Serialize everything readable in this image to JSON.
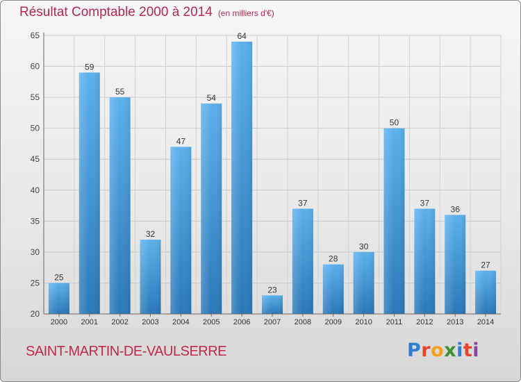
{
  "header": {
    "title": "Résultat Comptable 2000 à 2014",
    "subtitle": "(en milliers d'€)"
  },
  "footer": {
    "town": "SAINT-MARTIN-DE-VAULSERRE",
    "logo_letters": [
      "P",
      "r",
      "o",
      "x",
      "i",
      "t",
      "i"
    ],
    "logo_colors": [
      "#2f7fd1",
      "#e3452b",
      "#f2a11d",
      "#3d8f2f",
      "#2f7fd1",
      "#e3452b",
      "#8f3fa8"
    ]
  },
  "colors": {
    "bar_top": "#5cb0ec",
    "bar_bottom": "#2a78b8",
    "title": "#b0294f"
  },
  "chart_data": {
    "type": "bar",
    "categories": [
      "2000",
      "2001",
      "2002",
      "2003",
      "2004",
      "2005",
      "2006",
      "2007",
      "2008",
      "2009",
      "2010",
      "2011",
      "2012",
      "2013",
      "2014"
    ],
    "values": [
      25,
      59,
      55,
      32,
      47,
      54,
      64,
      23,
      37,
      28,
      30,
      50,
      37,
      36,
      27
    ],
    "ylim": [
      20,
      65
    ],
    "yticks": [
      20,
      25,
      30,
      35,
      40,
      45,
      50,
      55,
      60,
      65
    ],
    "grid": true,
    "data_labels": true
  }
}
